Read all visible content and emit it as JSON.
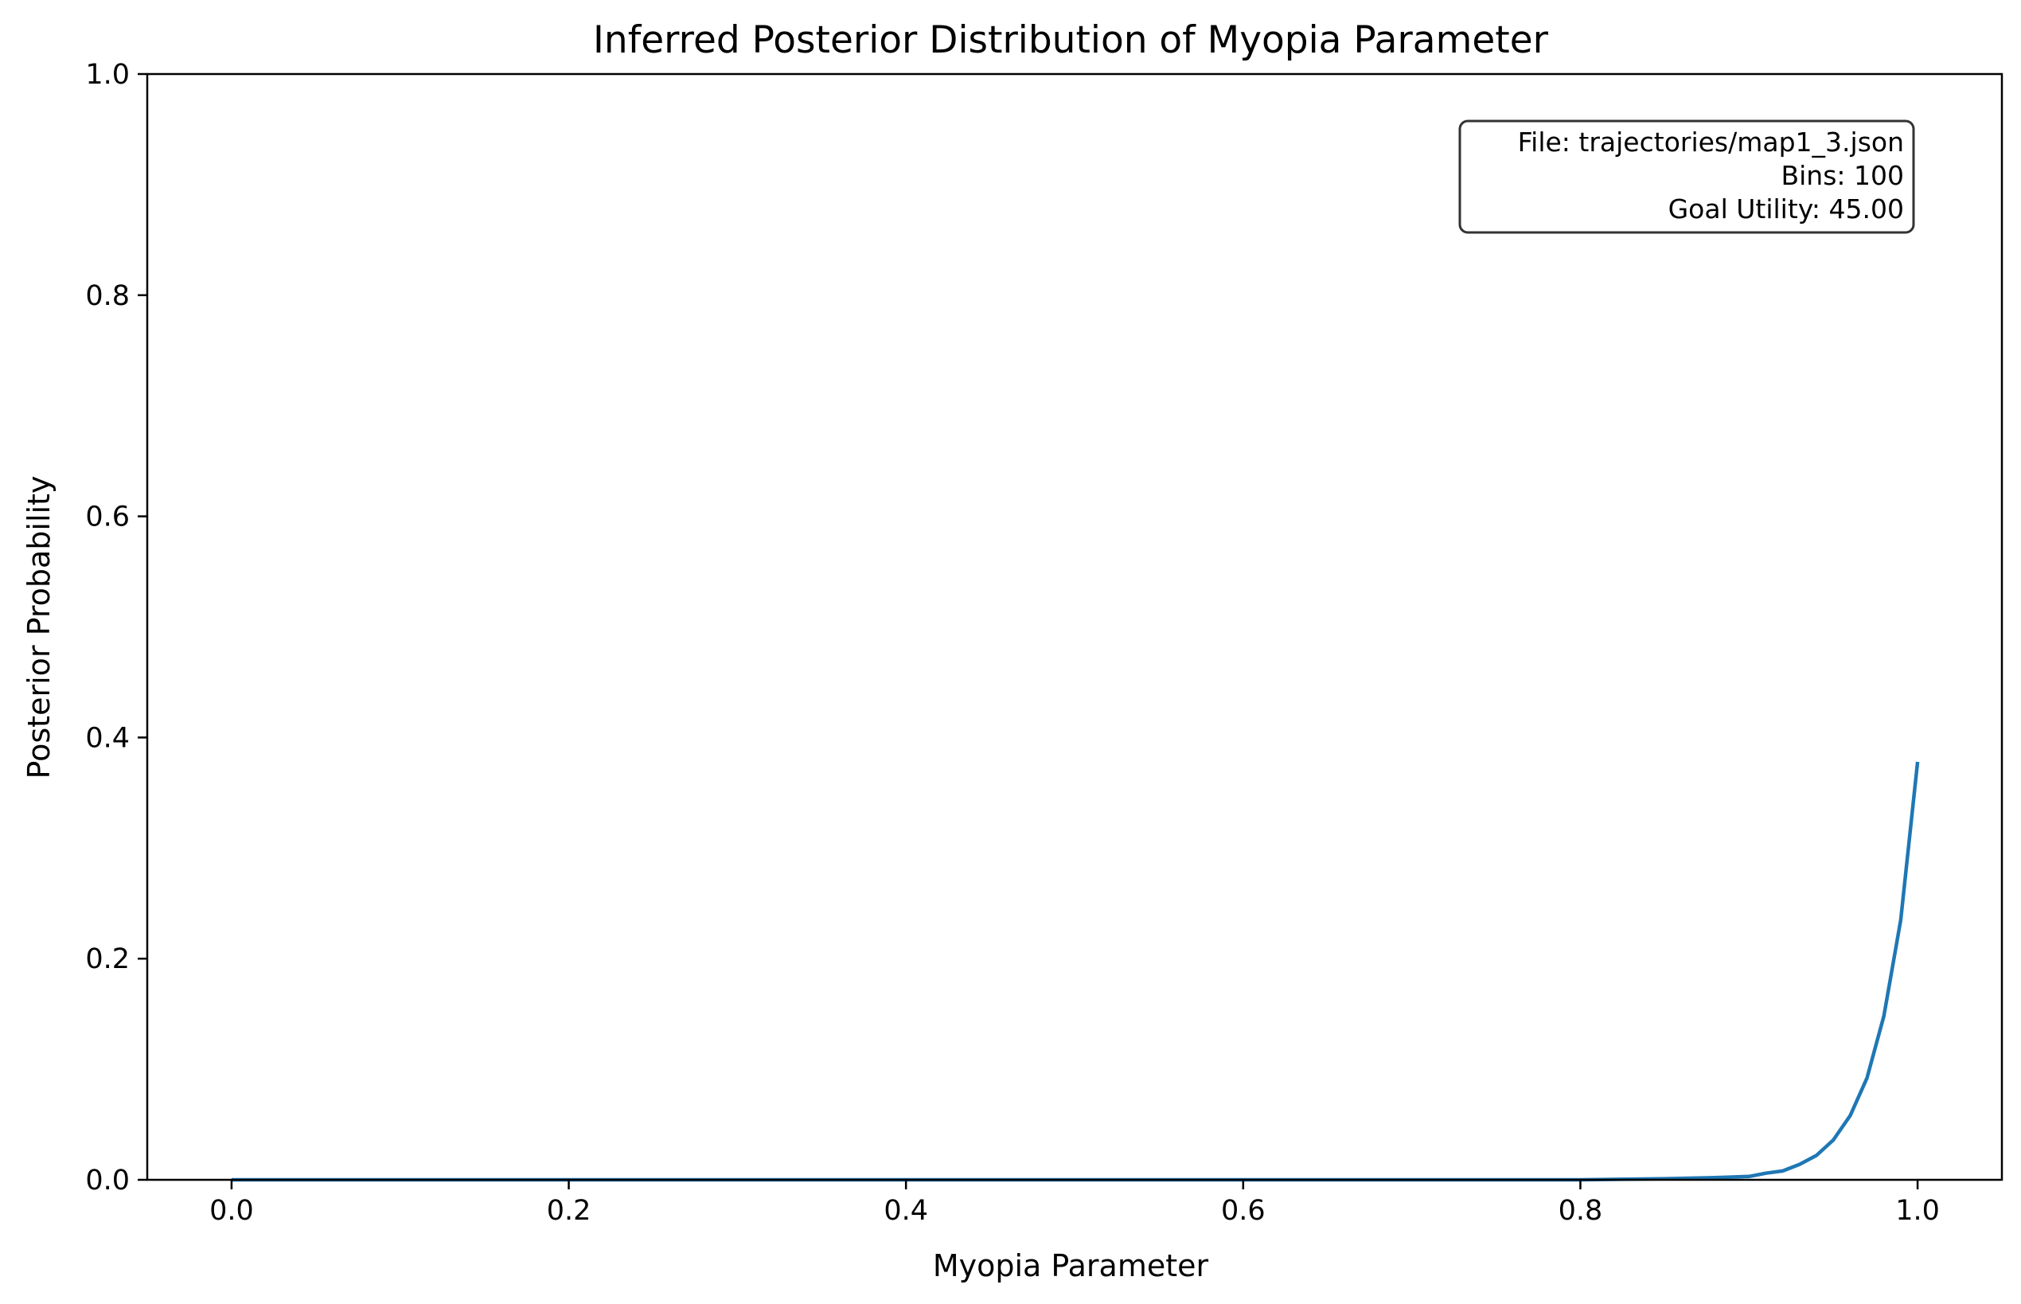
{
  "chart_data": {
    "type": "line",
    "title": "Inferred Posterior Distribution of Myopia Parameter",
    "xlabel": "Myopia Parameter",
    "ylabel": "Posterior Probability",
    "xlim": [
      -0.05,
      1.05
    ],
    "ylim": [
      0.0,
      1.0
    ],
    "xticks": [
      "0.0",
      "0.2",
      "0.4",
      "0.6",
      "0.8",
      "1.0"
    ],
    "yticks": [
      "0.0",
      "0.2",
      "0.4",
      "0.6",
      "0.8",
      "1.0"
    ],
    "grid": false,
    "legend": null,
    "annotation": {
      "placement": "top-right",
      "lines": [
        "File: trajectories/map1_3.json",
        "Bins: 100",
        "Goal Utility: 45.00"
      ]
    },
    "series": [
      {
        "color": "#1f77b4",
        "x": [
          0.0,
          0.5,
          0.8,
          0.85,
          0.88,
          0.9,
          0.91,
          0.92,
          0.93,
          0.94,
          0.95,
          0.96,
          0.97,
          0.98,
          0.99,
          1.0
        ],
        "y": [
          0.0,
          0.0,
          0.0,
          0.001,
          0.002,
          0.003,
          0.006,
          0.008,
          0.014,
          0.022,
          0.036,
          0.058,
          0.092,
          0.148,
          0.235,
          0.378
        ]
      }
    ]
  }
}
